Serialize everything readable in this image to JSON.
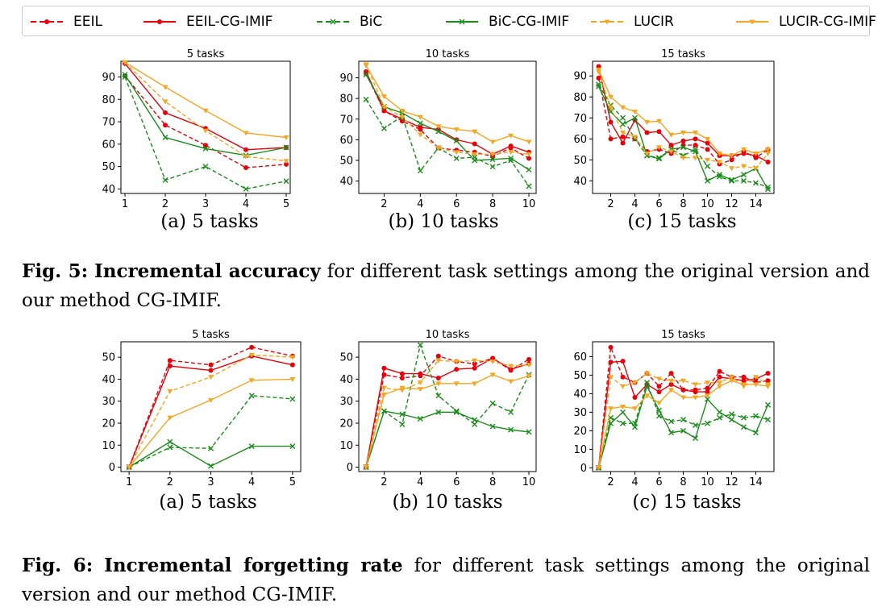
{
  "legend": [
    {
      "label": "EEIL",
      "color": "#e8000b",
      "dash": true,
      "marker": "circle"
    },
    {
      "label": "EEIL-CG-IMIF",
      "color": "#e8000b",
      "dash": false,
      "marker": "circle"
    },
    {
      "label": "BiC",
      "color": "#1a8c1a",
      "dash": true,
      "marker": "x"
    },
    {
      "label": "BiC-CG-IMIF",
      "color": "#1a8c1a",
      "dash": false,
      "marker": "x"
    },
    {
      "label": "LUCIR",
      "color": "#f5a623",
      "dash": true,
      "marker": "tri"
    },
    {
      "label": "LUCIR-CG-IMIF",
      "color": "#f5a623",
      "dash": false,
      "marker": "tri"
    }
  ],
  "fig5": {
    "label": "Fig. 5:",
    "bold": "Incremental accuracy",
    "rest": "for different task settings among the original version and our method CG-IMIF.",
    "subcaptions": [
      "(a) 5 tasks",
      "(b) 10 tasks",
      "(c) 15 tasks"
    ]
  },
  "fig6": {
    "label": "Fig. 6:",
    "bold": "Incremental forgetting rate",
    "rest": "for different task settings among the original version and our method CG-IMIF.",
    "subcaptions": [
      "(a) 5 tasks",
      "(b) 10 tasks",
      "(c) 15 tasks"
    ]
  },
  "chart_data": [
    {
      "type": "line",
      "figure": "Fig. 5 (a)",
      "title": "5 tasks",
      "xlim": [
        0.9,
        5.1
      ],
      "ylim": [
        38,
        97
      ],
      "xticks": [
        1,
        2,
        3,
        4,
        5
      ],
      "yticks": [
        40,
        50,
        60,
        70,
        80,
        90
      ],
      "x": [
        1,
        2,
        3,
        4,
        5
      ],
      "series": [
        {
          "name": "EEIL",
          "values": [
            90.5,
            68.5,
            59.5,
            49.5,
            51
          ]
        },
        {
          "name": "EEIL-CG-IMIF",
          "values": [
            96,
            74,
            67,
            57.5,
            58.5
          ]
        },
        {
          "name": "BiC",
          "values": [
            90,
            44,
            50,
            40,
            43.5
          ]
        },
        {
          "name": "BiC-CG-IMIF",
          "values": [
            91,
            63,
            58,
            55,
            58.5
          ]
        },
        {
          "name": "LUCIR",
          "values": [
            96.5,
            79,
            66,
            54.5,
            52.5
          ]
        },
        {
          "name": "LUCIR-CG-IMIF",
          "values": [
            96.5,
            85.5,
            75,
            65,
            63
          ]
        }
      ]
    },
    {
      "type": "line",
      "figure": "Fig. 5 (b)",
      "title": "10 tasks",
      "xlim": [
        0.6,
        10.4
      ],
      "ylim": [
        34,
        98
      ],
      "xticks": [
        2,
        4,
        6,
        8,
        10
      ],
      "yticks": [
        40,
        50,
        60,
        70,
        80,
        90
      ],
      "x": [
        1,
        2,
        3,
        4,
        5,
        6,
        7,
        8,
        9,
        10
      ],
      "series": [
        {
          "name": "EEIL",
          "values": [
            92,
            74,
            69,
            65,
            56,
            55,
            54,
            52,
            56,
            51
          ]
        },
        {
          "name": "EEIL-CG-IMIF",
          "values": [
            93,
            74,
            70,
            66,
            65,
            60,
            58,
            53,
            57,
            54
          ]
        },
        {
          "name": "BiC",
          "values": [
            79.5,
            65.5,
            71.5,
            45,
            56,
            51,
            51.5,
            47,
            50,
            37.5
          ]
        },
        {
          "name": "BiC-CG-IMIF",
          "values": [
            91.5,
            76,
            73,
            68,
            64,
            59.5,
            50,
            50.5,
            51,
            45.5
          ]
        },
        {
          "name": "LUCIR",
          "values": [
            96.5,
            76,
            71,
            62.5,
            56,
            54,
            53,
            53,
            54,
            53
          ]
        },
        {
          "name": "LUCIR-CG-IMIF",
          "values": [
            96,
            81,
            74,
            71,
            66.5,
            65,
            64,
            59,
            62,
            59
          ]
        }
      ]
    },
    {
      "type": "line",
      "figure": "Fig. 5 (c)",
      "title": "15 tasks",
      "xlim": [
        0.5,
        15.5
      ],
      "ylim": [
        34,
        97
      ],
      "xticks": [
        2,
        4,
        6,
        8,
        10,
        12,
        14
      ],
      "yticks": [
        40,
        50,
        60,
        70,
        80,
        90
      ],
      "x": [
        1,
        2,
        3,
        4,
        5,
        6,
        7,
        8,
        9,
        10,
        11,
        12,
        13,
        14,
        15
      ],
      "series": [
        {
          "name": "EEIL",
          "values": [
            89,
            60,
            61,
            60,
            54,
            55,
            53,
            57,
            57,
            55,
            48,
            50,
            54,
            51,
            55
          ]
        },
        {
          "name": "EEIL-CG-IMIF",
          "values": [
            94.5,
            68,
            58,
            69,
            63,
            63.5,
            57,
            59,
            60,
            58,
            52,
            52,
            53,
            52,
            49
          ]
        },
        {
          "name": "BiC",
          "values": [
            86,
            76,
            70,
            60,
            52,
            51,
            55,
            52,
            55,
            47,
            42,
            40,
            40,
            39,
            37
          ]
        },
        {
          "name": "BiC-CG-IMIF",
          "values": [
            85,
            73,
            67,
            70,
            52,
            50.5,
            55,
            56,
            54,
            40,
            43,
            40.5,
            43,
            46,
            36
          ]
        },
        {
          "name": "LUCIR",
          "values": [
            92,
            75,
            63,
            61,
            53,
            56,
            54,
            51,
            51,
            50,
            49,
            46,
            47,
            46,
            53
          ]
        },
        {
          "name": "LUCIR-CG-IMIF",
          "values": [
            93,
            80,
            75,
            73,
            68,
            68.5,
            62,
            63,
            63,
            60,
            53,
            52,
            55,
            53,
            55
          ]
        }
      ]
    },
    {
      "type": "line",
      "figure": "Fig. 6 (a)",
      "title": "5 tasks",
      "xlim": [
        0.8,
        5.2
      ],
      "ylim": [
        -2,
        57
      ],
      "xticks": [
        1,
        2,
        3,
        4,
        5
      ],
      "yticks": [
        0,
        10,
        20,
        30,
        40,
        50
      ],
      "x": [
        1,
        2,
        3,
        4,
        5
      ],
      "series": [
        {
          "name": "EEIL",
          "values": [
            0,
            48.5,
            46.5,
            54.5,
            50.5
          ]
        },
        {
          "name": "EEIL-CG-IMIF",
          "values": [
            0,
            46,
            44,
            50.5,
            46.5
          ]
        },
        {
          "name": "BiC",
          "values": [
            0,
            9,
            8.5,
            32.5,
            31
          ]
        },
        {
          "name": "BiC-CG-IMIF",
          "values": [
            0,
            11.5,
            0.5,
            9.5,
            9.5
          ]
        },
        {
          "name": "LUCIR",
          "values": [
            0,
            34.5,
            41,
            51,
            50
          ]
        },
        {
          "name": "LUCIR-CG-IMIF",
          "values": [
            0,
            22.5,
            30.5,
            39.5,
            40
          ]
        }
      ]
    },
    {
      "type": "line",
      "figure": "Fig. 6 (b)",
      "title": "10 tasks",
      "xlim": [
        0.6,
        10.4
      ],
      "ylim": [
        -2,
        57
      ],
      "xticks": [
        2,
        4,
        6,
        8,
        10
      ],
      "yticks": [
        0,
        10,
        20,
        30,
        40,
        50
      ],
      "x": [
        1,
        2,
        3,
        4,
        5,
        6,
        7,
        8,
        9,
        10
      ],
      "series": [
        {
          "name": "EEIL",
          "values": [
            0,
            42,
            40.5,
            41.5,
            50.5,
            48,
            47,
            49.5,
            44,
            49
          ]
        },
        {
          "name": "EEIL-CG-IMIF",
          "values": [
            0,
            45,
            42.5,
            42.5,
            40.5,
            44.5,
            45,
            49.5,
            44.5,
            47
          ]
        },
        {
          "name": "BiC",
          "values": [
            0,
            25.5,
            19.5,
            55.5,
            32.5,
            25.5,
            19.5,
            29,
            25,
            42
          ]
        },
        {
          "name": "BiC-CG-IMIF",
          "values": [
            0,
            25.5,
            24,
            22,
            25,
            25,
            21.5,
            18.5,
            17,
            16
          ]
        },
        {
          "name": "LUCIR",
          "values": [
            0,
            36,
            35,
            38.5,
            48.5,
            48,
            48.5,
            48,
            46,
            46.5
          ]
        },
        {
          "name": "LUCIR-CG-IMIF",
          "values": [
            0,
            33,
            36,
            35.5,
            38,
            38,
            38,
            42,
            39,
            41.5
          ]
        }
      ]
    },
    {
      "type": "line",
      "figure": "Fig. 6 (c)",
      "title": "15 tasks",
      "xlim": [
        0.5,
        15.5
      ],
      "ylim": [
        -2,
        68
      ],
      "xticks": [
        2,
        4,
        6,
        8,
        10,
        12,
        14
      ],
      "yticks": [
        0,
        10,
        20,
        30,
        40,
        50,
        60
      ],
      "x": [
        1,
        2,
        3,
        4,
        5,
        6,
        7,
        8,
        9,
        10,
        11,
        12,
        13,
        14,
        15
      ],
      "series": [
        {
          "name": "EEIL",
          "values": [
            0,
            65,
            49,
            46,
            51,
            44,
            51,
            42,
            42,
            43,
            52,
            49,
            49,
            46,
            47
          ]
        },
        {
          "name": "EEIL-CG-IMIF",
          "values": [
            0,
            57,
            57.5,
            38,
            45,
            41,
            45,
            42,
            41,
            41,
            49,
            48,
            47,
            48,
            51
          ]
        },
        {
          "name": "BiC",
          "values": [
            0,
            27,
            24,
            24,
            46,
            28,
            25,
            26,
            23,
            24,
            27,
            29,
            27,
            28,
            26
          ]
        },
        {
          "name": "BiC-CG-IMIF",
          "values": [
            0,
            24,
            30,
            22,
            44,
            31,
            19,
            20,
            16,
            37,
            30,
            26,
            22,
            19,
            34
          ]
        },
        {
          "name": "LUCIR",
          "values": [
            0,
            49,
            44,
            46,
            51,
            48,
            47,
            47,
            45,
            46,
            46,
            49,
            44,
            49,
            45
          ]
        },
        {
          "name": "LUCIR-CG-IMIF",
          "values": [
            0,
            32,
            33,
            32,
            39,
            35,
            42,
            38,
            38,
            39,
            44,
            47,
            45,
            45,
            44
          ]
        }
      ]
    }
  ]
}
